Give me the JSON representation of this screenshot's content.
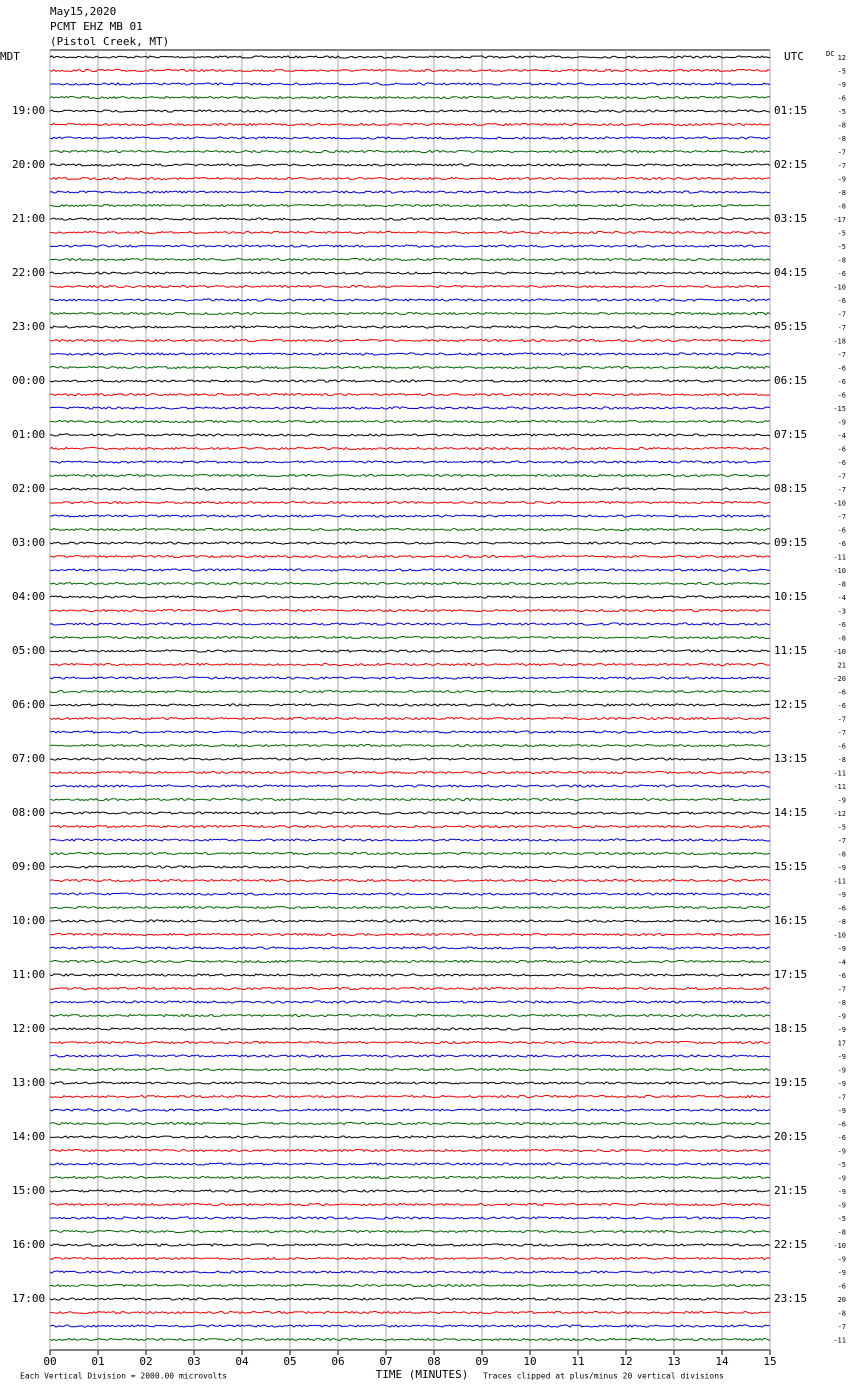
{
  "header": {
    "date": "May15,2020",
    "station": "PCMT EHZ MB 01",
    "location": "(Pistol Creek, MT)"
  },
  "left_title": "MDT",
  "right_title": "UTC",
  "dc_label": "DC",
  "mdt_labels": [
    "19:00",
    "20:00",
    "21:00",
    "22:00",
    "23:00",
    "00:00",
    "01:00",
    "02:00",
    "03:00",
    "04:00",
    "05:00",
    "06:00",
    "07:00",
    "08:00",
    "09:00",
    "10:00",
    "11:00",
    "12:00",
    "13:00",
    "14:00",
    "15:00",
    "16:00",
    "17:00"
  ],
  "utc_labels": [
    "01:15",
    "02:15",
    "03:15",
    "04:15",
    "05:15",
    "06:15",
    "07:15",
    "08:15",
    "09:15",
    "10:15",
    "11:15",
    "12:15",
    "13:15",
    "14:15",
    "15:15",
    "16:15",
    "17:15",
    "18:15",
    "19:15",
    "20:15",
    "21:15",
    "22:15",
    "23:15"
  ],
  "dc_offsets": [
    12,
    -5,
    -9,
    -6,
    -5,
    -8,
    -8,
    -7,
    -7,
    -9,
    -8,
    -8,
    -17,
    -5,
    -5,
    -8,
    -6,
    -10,
    -6,
    -7,
    -7,
    -18,
    -7,
    -6,
    -6,
    -6,
    -15,
    -9,
    -4,
    -6,
    -6,
    -7,
    -7,
    -10,
    -7,
    -6,
    -6,
    -11,
    -10,
    -8,
    -4,
    -3,
    -6,
    -8,
    -10,
    21,
    -20,
    -6,
    -6,
    -7,
    -7,
    -6,
    -8,
    -11,
    -11,
    -9,
    -12,
    -5,
    -7,
    -8,
    -9,
    -11,
    -9,
    -6,
    -8,
    -10,
    -9,
    -4,
    -6,
    -7,
    -8,
    -9,
    -9,
    17,
    -9,
    -9,
    -9,
    -7,
    -9,
    -6,
    -6,
    -9,
    -5,
    -9,
    -9,
    -9,
    -5,
    -8,
    -10,
    -9,
    -9,
    -6,
    20,
    -8,
    -7,
    -11
  ],
  "x_ticks": [
    "00",
    "01",
    "02",
    "03",
    "04",
    "05",
    "06",
    "07",
    "08",
    "09",
    "10",
    "11",
    "12",
    "13",
    "14",
    "15"
  ],
  "x_title": "TIME (MINUTES)",
  "footer_left": "Each Vertical Division = 2000.00 microvolts",
  "footer_right": "Traces clipped at plus/minus 20 vertical divisions"
}
